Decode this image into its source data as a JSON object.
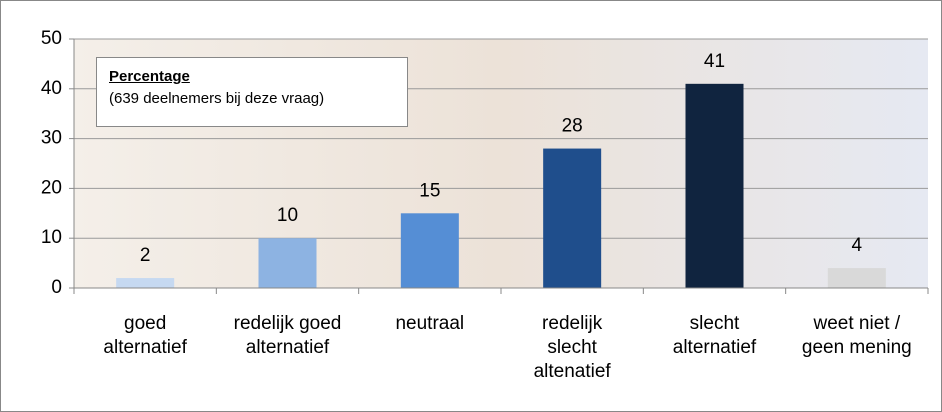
{
  "chart_data": {
    "type": "bar",
    "legend_title": "Percentage",
    "legend_subtitle": "(639 deelnemers bij deze vraag)",
    "categories": [
      "goed\nalternatief",
      "redelijk goed\nalternatief",
      "neutraal",
      "redelijk\nslecht\naltenatief",
      "slecht\nalternatief",
      "weet niet /\ngeen mening"
    ],
    "values": [
      2,
      10,
      15,
      28,
      41,
      4
    ],
    "colors": [
      "#c6d9f1",
      "#8db3e2",
      "#558ed5",
      "#1f4e8c",
      "#10243f",
      "#d9d9d9"
    ],
    "ylim": [
      0,
      50
    ],
    "yticks": [
      0,
      10,
      20,
      30,
      40,
      50
    ],
    "grid": true
  }
}
